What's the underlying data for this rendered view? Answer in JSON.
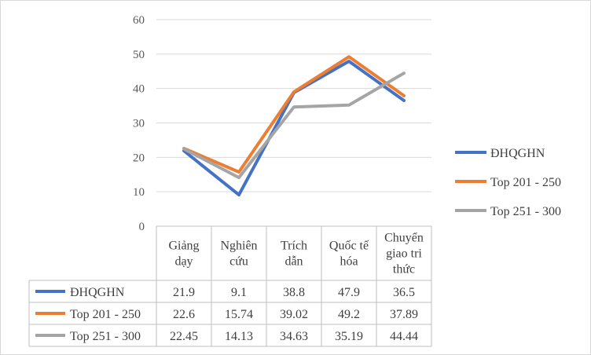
{
  "chart_data": {
    "type": "line",
    "title": "",
    "xlabel": "",
    "ylabel": "",
    "ylim": [
      0,
      60
    ],
    "yticks": [
      0,
      10,
      20,
      30,
      40,
      50,
      60
    ],
    "grid": true,
    "legend_position": "right",
    "has_data_table": true,
    "categories": [
      [
        "Giảng",
        "dạy"
      ],
      [
        "Nghiên",
        "cứu"
      ],
      [
        "Trích",
        "dẫn"
      ],
      [
        "Quốc tế",
        "hóa"
      ],
      [
        "Chuyển",
        "giao tri",
        "thức"
      ]
    ],
    "series": [
      {
        "name": "ĐHQGHN",
        "color": "#4472c4",
        "values": [
          21.9,
          9.1,
          38.8,
          47.9,
          36.5
        ],
        "labels": [
          "21.9",
          "9.1",
          "38.8",
          "47.9",
          "36.5"
        ]
      },
      {
        "name": "Top 201 - 250",
        "color": "#ed7d31",
        "values": [
          22.6,
          15.74,
          39.02,
          49.2,
          37.89
        ],
        "labels": [
          "22.6",
          "15.74",
          "39.02",
          "49.2",
          "37.89"
        ]
      },
      {
        "name": "Top 251 - 300",
        "color": "#a5a5a5",
        "values": [
          22.45,
          14.13,
          34.63,
          35.19,
          44.44
        ],
        "labels": [
          "22.45",
          "14.13",
          "34.63",
          "35.19",
          "44.44"
        ]
      }
    ]
  }
}
